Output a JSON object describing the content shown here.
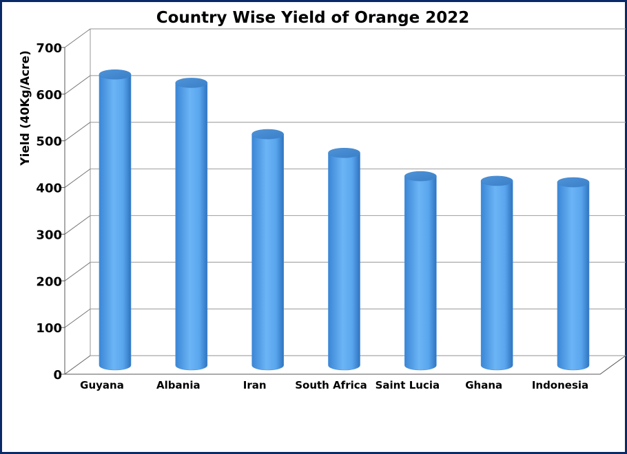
{
  "chart_data": {
    "type": "bar",
    "title": "Country Wise Yield of Orange 2022",
    "xlabel": "",
    "ylabel": "Yield (40Kg/Acre)",
    "ylim": [
      0,
      700
    ],
    "yticks": [
      0,
      100,
      200,
      300,
      400,
      500,
      600,
      700
    ],
    "ytick_labels": [
      "0",
      "100",
      "200",
      "300",
      "400",
      "500",
      "600",
      "700"
    ],
    "categories": [
      "Guyana",
      "Albania",
      "Iran",
      "South Africa",
      "Saint Lucia",
      "Ghana",
      "Indonesia"
    ],
    "values": [
      623,
      605,
      495,
      455,
      405,
      395,
      392
    ],
    "grid": true,
    "legend": "none",
    "bar_shape": "cylinder-3d",
    "bar_color": "#5aa6ee"
  }
}
